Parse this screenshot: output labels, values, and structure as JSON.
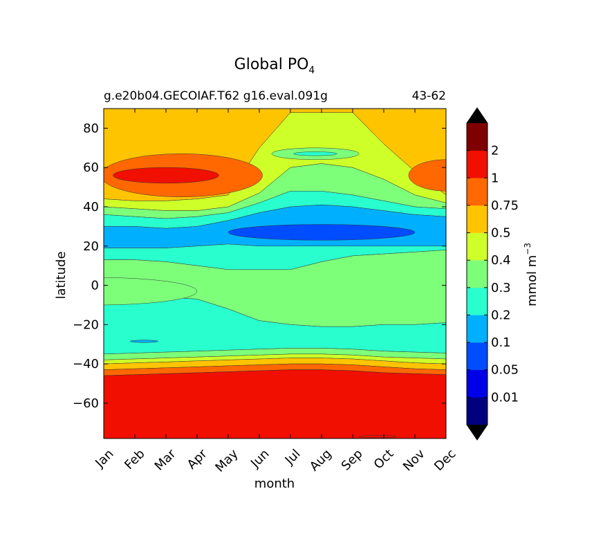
{
  "chart_data": {
    "type": "heatmap",
    "title": "Global PO",
    "title_subscript": "4",
    "subtitle_left": "g.e20b04.GECOIAF.T62 g16.eval.091g",
    "subtitle_right": "43-62",
    "xlabel": "month",
    "ylabel": "latitude",
    "x_ticks": [
      "Jan",
      "Feb",
      "Mar",
      "Apr",
      "May",
      "Jun",
      "Jul",
      "Aug",
      "Sep",
      "Oct",
      "Nov",
      "Dec"
    ],
    "y_ticks": [
      {
        "value": 80,
        "label": "80"
      },
      {
        "value": 60,
        "label": "60"
      },
      {
        "value": 40,
        "label": "40"
      },
      {
        "value": 20,
        "label": "20"
      },
      {
        "value": 0,
        "label": "0"
      },
      {
        "value": -20,
        "label": "−20"
      },
      {
        "value": -40,
        "label": "−40"
      },
      {
        "value": -60,
        "label": "−60"
      }
    ],
    "ylim": [
      -78,
      90
    ],
    "xlim": [
      0,
      11
    ],
    "colorbar": {
      "label": "mmol m",
      "label_superscript": "−3",
      "levels": [
        "0.01",
        "0.05",
        "0.1",
        "0.2",
        "0.3",
        "0.4",
        "0.5",
        "0.75",
        "1",
        "2"
      ],
      "colors": [
        "#00007f",
        "#0000e8",
        "#004cff",
        "#00b0ff",
        "#29ffce",
        "#7dff7a",
        "#ceff29",
        "#ffc400",
        "#ff6800",
        "#f00f00",
        "#7f0000"
      ],
      "extend": "both",
      "extend_colors": [
        "#000000",
        "#000000"
      ]
    },
    "bands": {
      "x": [
        0,
        1,
        2,
        3,
        4,
        5,
        6,
        7,
        8,
        9,
        10,
        11
      ],
      "note": "upper latitude boundary of each colour band per month (latitude in degrees)",
      "boundaries": [
        {
          "level": "1",
          "color": "#f00f00",
          "upper": [
            -46,
            -45.5,
            -45,
            -44.5,
            -44,
            -43.5,
            -43,
            -43,
            -43.5,
            -44.5,
            -45,
            -45.5
          ]
        },
        {
          "level": "0.75",
          "color": "#ff6800",
          "upper": [
            -43,
            -42.5,
            -42,
            -41.5,
            -41,
            -40.5,
            -40,
            -40,
            -40.5,
            -41.5,
            -42.5,
            -43
          ]
        },
        {
          "level": "0.5",
          "color": "#ffc400",
          "upper": [
            -40,
            -39.5,
            -39,
            -38.5,
            -38,
            -37.5,
            -37,
            -37,
            -37.5,
            -38.5,
            -39.5,
            -40
          ]
        },
        {
          "level": "0.4",
          "color": "#ceff29",
          "upper": [
            -38,
            -37.5,
            -37,
            -36.5,
            -36,
            -35.5,
            -35,
            -35,
            -35.5,
            -36.5,
            -37,
            -37.5
          ]
        },
        {
          "level": "0.3",
          "color": "#7dff7a",
          "upper": [
            -35,
            -34.5,
            -34,
            -33.5,
            -33,
            -32.5,
            -32,
            -32,
            -32.5,
            -33.5,
            -34,
            -34.5
          ]
        },
        {
          "level": "0.2",
          "color": "#29ffce",
          "upper": [
            -10,
            -8,
            -6,
            -7,
            -12,
            -18,
            -20,
            -21,
            -21,
            -20,
            -20,
            -19
          ]
        },
        {
          "level": "0.3",
          "color": "#7dff7a",
          "upper": [
            13,
            13,
            12,
            10,
            8,
            8,
            8,
            12,
            15,
            16,
            17,
            18
          ]
        },
        {
          "level": "0.2",
          "color": "#29ffce",
          "upper": [
            19,
            19,
            19,
            20,
            21,
            20,
            20,
            20,
            20,
            20,
            20,
            20
          ]
        },
        {
          "level": "0.1",
          "color": "#00b0ff",
          "upper": [
            30,
            30,
            29,
            30,
            33,
            37,
            40,
            41,
            40,
            38,
            36,
            35
          ]
        },
        {
          "level": "0.2",
          "color": "#29ffce",
          "upper": [
            36,
            35,
            34,
            35,
            37,
            42,
            48,
            48,
            46,
            43,
            40,
            39
          ]
        },
        {
          "level": "0.3",
          "color": "#7dff7a",
          "upper": [
            40,
            39,
            38,
            38,
            40,
            47,
            60,
            62,
            60,
            54,
            46,
            42
          ]
        },
        {
          "level": "0.4",
          "color": "#ceff29",
          "upper": [
            44,
            43,
            43,
            44,
            46,
            70,
            88,
            88,
            88,
            72,
            58,
            46
          ]
        },
        {
          "level": "0.5",
          "color": "#ffc400",
          "upper": [
            90,
            90,
            90,
            90,
            90,
            90,
            90,
            90,
            90,
            90,
            90,
            90
          ]
        }
      ]
    },
    "features": [
      {
        "level": "1",
        "color": "#ff6800",
        "center": [
          2.5,
          56
        ],
        "extent": [
          2.6,
          11
        ]
      },
      {
        "level": "2",
        "color": "#f00f00",
        "center": [
          2.0,
          56
        ],
        "extent": [
          1.7,
          4
        ]
      },
      {
        "level": "1",
        "color": "#ff6800",
        "center": [
          11.0,
          56
        ],
        "extent": [
          1.2,
          8
        ]
      },
      {
        "level": "0.05",
        "color": "#004cff",
        "center": [
          7.0,
          27
        ],
        "extent": [
          3.0,
          4
        ]
      },
      {
        "level": "0.3",
        "color": "#7dff7a",
        "center": [
          6.8,
          67
        ],
        "extent": [
          1.4,
          3
        ]
      },
      {
        "level": "0.2",
        "color": "#29ffce",
        "center": [
          6.8,
          67
        ],
        "extent": [
          0.7,
          1
        ]
      },
      {
        "level": "0.3",
        "color": "#7dff7a",
        "center": [
          -0.2,
          -3
        ],
        "extent": [
          3.2,
          7
        ]
      },
      {
        "level": "0.1",
        "color": "#00b0ff",
        "center": [
          1.3,
          -28.5
        ],
        "extent": [
          0.45,
          0.6
        ]
      },
      {
        "level": "1",
        "color": "#f00f00",
        "center": [
          8.8,
          -77
        ],
        "extent": [
          0.6,
          0.6
        ]
      }
    ]
  }
}
